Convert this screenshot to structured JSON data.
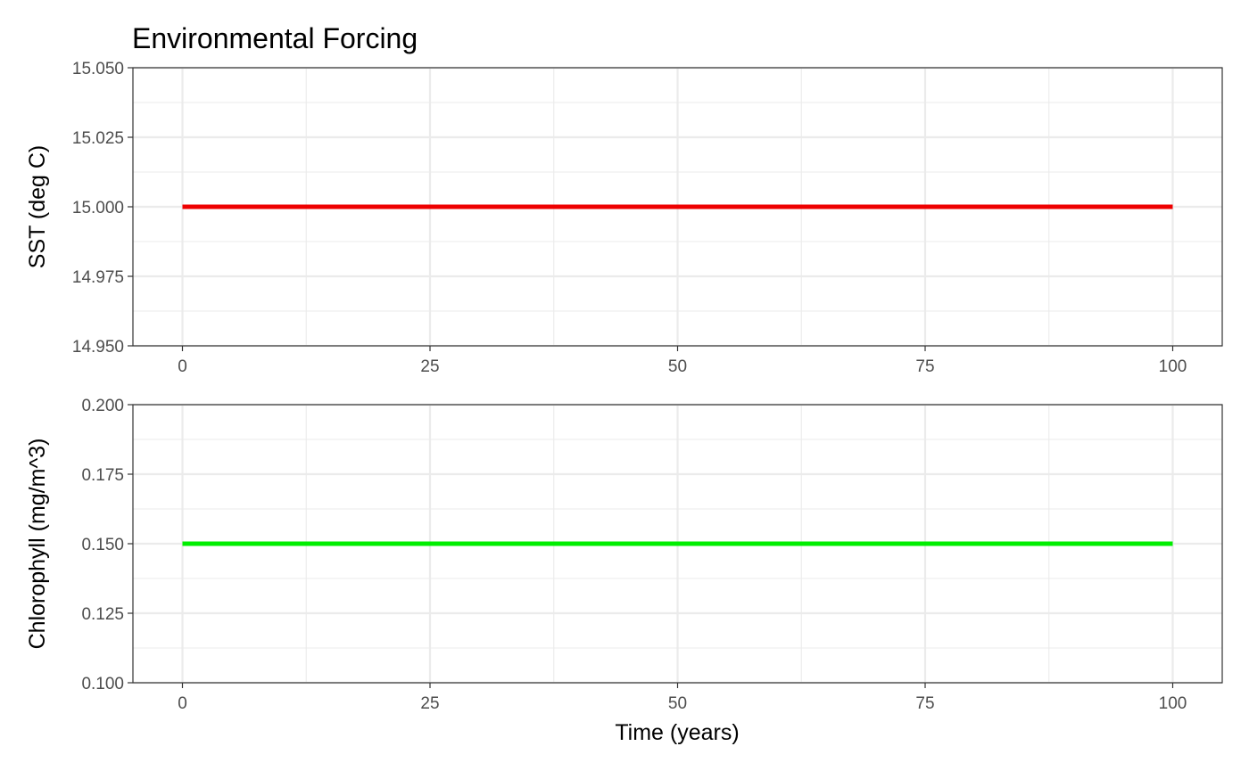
{
  "chart_data": [
    {
      "type": "line",
      "title": "Environmental Forcing",
      "xlabel": "",
      "ylabel": "SST (deg C)",
      "xlim": [
        -5,
        105
      ],
      "ylim": [
        14.95,
        15.05
      ],
      "x_ticks": [
        0,
        25,
        50,
        75,
        100
      ],
      "x_tick_labels": [
        "0",
        "25",
        "50",
        "75",
        "100"
      ],
      "y_ticks": [
        14.95,
        14.975,
        15.0,
        15.025,
        15.05
      ],
      "y_tick_labels": [
        "14.950",
        "14.975",
        "15.000",
        "15.025",
        "15.050"
      ],
      "grid": true,
      "series": [
        {
          "color": "#ee0000",
          "x": [
            0,
            100
          ],
          "y": [
            15.0,
            15.0
          ]
        }
      ]
    },
    {
      "type": "line",
      "title": "",
      "xlabel": "Time (years)",
      "ylabel": "Chlorophyll (mg/m^3)",
      "xlim": [
        -5,
        105
      ],
      "ylim": [
        0.1,
        0.2
      ],
      "x_ticks": [
        0,
        25,
        50,
        75,
        100
      ],
      "x_tick_labels": [
        "0",
        "25",
        "50",
        "75",
        "100"
      ],
      "y_ticks": [
        0.1,
        0.125,
        0.15,
        0.175,
        0.2
      ],
      "y_tick_labels": [
        "0.100",
        "0.125",
        "0.150",
        "0.175",
        "0.200"
      ],
      "grid": true,
      "series": [
        {
          "color": "#00ee00",
          "x": [
            0,
            100
          ],
          "y": [
            0.15,
            0.15
          ]
        }
      ]
    }
  ]
}
